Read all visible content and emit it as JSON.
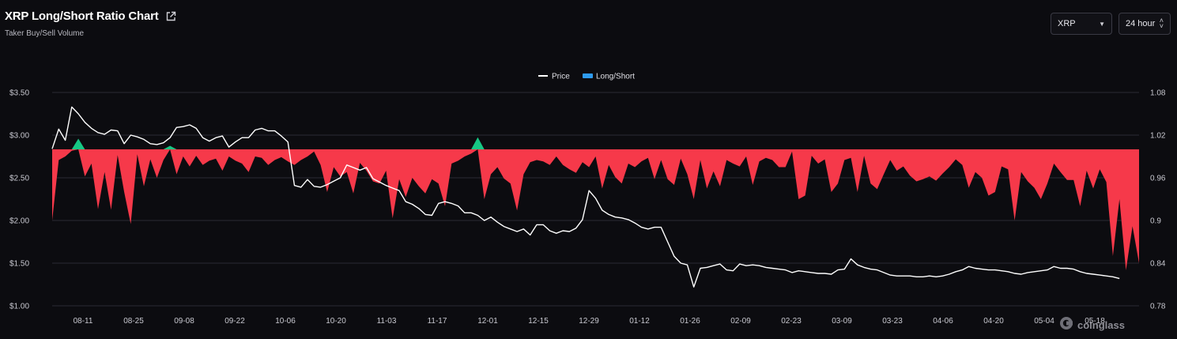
{
  "header": {
    "title": "XRP Long/Short Ratio Chart",
    "subtitle": "Taker Buy/Sell Volume"
  },
  "controls": {
    "coin": "XRP",
    "interval": "24 hour"
  },
  "watermark": "coinglass",
  "colors": {
    "price": "#ffffff",
    "long": "#16c784",
    "short": "#f6394a",
    "grid": "#2a2a33",
    "background": "#0c0c10"
  },
  "chart_data": {
    "type": "line+area",
    "legend": [
      "Price",
      "Long/Short"
    ],
    "legend_position": "top-center",
    "grid": true,
    "x_ticks": [
      "08-11",
      "08-25",
      "09-08",
      "09-22",
      "10-06",
      "10-20",
      "11-03",
      "11-17",
      "12-01",
      "12-15",
      "12-29",
      "01-12",
      "01-26",
      "02-09",
      "02-23",
      "03-09",
      "03-23",
      "04-06",
      "04-20",
      "05-04",
      "05-18"
    ],
    "y_left": {
      "ticks": [
        "$1.00",
        "$1.50",
        "$2.00",
        "$2.50",
        "$3.00",
        "$3.50"
      ],
      "range": [
        1.0,
        3.5
      ],
      "unit": "USD"
    },
    "y_right": {
      "ticks": [
        "0.78",
        "0.84",
        "0.9",
        "0.96",
        "1.02",
        "1.08"
      ],
      "range": [
        0.78,
        1.08
      ]
    },
    "baseline": 1.0,
    "series": [
      {
        "name": "Price",
        "axis": "left",
        "values": [
          2.84,
          3.07,
          2.94,
          3.33,
          3.25,
          3.15,
          3.08,
          3.03,
          3.01,
          3.06,
          3.05,
          2.9,
          3.0,
          2.98,
          2.95,
          2.9,
          2.89,
          2.91,
          2.97,
          3.09,
          3.1,
          3.12,
          3.08,
          2.97,
          2.93,
          2.97,
          2.99,
          2.86,
          2.92,
          2.97,
          2.97,
          3.06,
          3.08,
          3.05,
          3.05,
          2.99,
          2.92,
          2.41,
          2.39,
          2.48,
          2.4,
          2.39,
          2.42,
          2.46,
          2.5,
          2.65,
          2.62,
          2.59,
          2.62,
          2.49,
          2.45,
          2.41,
          2.38,
          2.35,
          2.22,
          2.19,
          2.14,
          2.07,
          2.06,
          2.2,
          2.22,
          2.2,
          2.17,
          2.09,
          2.09,
          2.06,
          2.0,
          2.04,
          1.98,
          1.93,
          1.9,
          1.87,
          1.9,
          1.83,
          1.95,
          1.95,
          1.88,
          1.85,
          1.88,
          1.87,
          1.91,
          2.01,
          2.35,
          2.26,
          2.12,
          2.07,
          2.04,
          2.03,
          2.01,
          1.97,
          1.92,
          1.9,
          1.92,
          1.92,
          1.75,
          1.58,
          1.5,
          1.48,
          1.22,
          1.44,
          1.45,
          1.47,
          1.49,
          1.42,
          1.41,
          1.49,
          1.47,
          1.48,
          1.47,
          1.45,
          1.44,
          1.43,
          1.42,
          1.39,
          1.41,
          1.4,
          1.39,
          1.38,
          1.38,
          1.37,
          1.42,
          1.43,
          1.55,
          1.48,
          1.45,
          1.43,
          1.42,
          1.39,
          1.36,
          1.35,
          1.35,
          1.35,
          1.34,
          1.34,
          1.35,
          1.34,
          1.35,
          1.37,
          1.4,
          1.42,
          1.46,
          1.44,
          1.43,
          1.42,
          1.42,
          1.41,
          1.4,
          1.38,
          1.37,
          1.39,
          1.4,
          1.41,
          1.42,
          1.46,
          1.44,
          1.44,
          1.43,
          1.4,
          1.38,
          1.37,
          1.36,
          1.35,
          1.34,
          1.32
        ]
      },
      {
        "name": "Long/Short",
        "axis": "right",
        "values": [
          0.9,
          0.985,
          0.99,
          0.998,
          1.015,
          0.962,
          0.98,
          0.916,
          0.968,
          0.915,
          0.992,
          0.94,
          0.895,
          0.993,
          0.948,
          0.986,
          0.96,
          0.985,
          1.005,
          0.965,
          0.99,
          0.976,
          0.991,
          0.978,
          0.984,
          0.987,
          0.97,
          0.99,
          0.984,
          0.98,
          0.968,
          0.99,
          0.988,
          0.978,
          0.985,
          0.989,
          0.983,
          0.978,
          0.985,
          0.99,
          0.997,
          0.978,
          0.94,
          0.975,
          0.962,
          0.968,
          0.938,
          0.981,
          0.97,
          0.955,
          0.952,
          0.97,
          0.903,
          0.958,
          0.933,
          0.96,
          0.948,
          0.938,
          0.958,
          0.952,
          0.92,
          0.98,
          0.984,
          0.99,
          0.994,
          1.017,
          0.93,
          0.965,
          0.975,
          0.959,
          0.952,
          0.914,
          0.965,
          0.982,
          0.985,
          0.983,
          0.978,
          0.99,
          0.978,
          0.972,
          0.967,
          0.982,
          0.975,
          0.99,
          0.945,
          0.978,
          0.961,
          0.952,
          0.98,
          0.975,
          0.983,
          0.988,
          0.958,
          0.985,
          0.958,
          0.95,
          0.987,
          0.965,
          0.93,
          0.985,
          0.945,
          0.969,
          0.948,
          0.985,
          0.98,
          0.976,
          0.99,
          0.95,
          0.983,
          0.988,
          0.985,
          0.975,
          0.975,
          0.997,
          0.93,
          0.935,
          0.991,
          0.98,
          0.986,
          0.94,
          0.952,
          0.985,
          0.988,
          0.94,
          0.991,
          0.952,
          0.944,
          0.965,
          0.985,
          0.97,
          0.976,
          0.963,
          0.955,
          0.958,
          0.962,
          0.956,
          0.966,
          0.975,
          0.986,
          0.978,
          0.946,
          0.968,
          0.96,
          0.935,
          0.94,
          0.976,
          0.972,
          0.9,
          0.968,
          0.955,
          0.946,
          0.93,
          0.952,
          0.98,
          0.968,
          0.957,
          0.957,
          0.92,
          0.97,
          0.945,
          0.972,
          0.954,
          0.85,
          0.93,
          0.83,
          0.892,
          0.84
        ]
      }
    ]
  }
}
